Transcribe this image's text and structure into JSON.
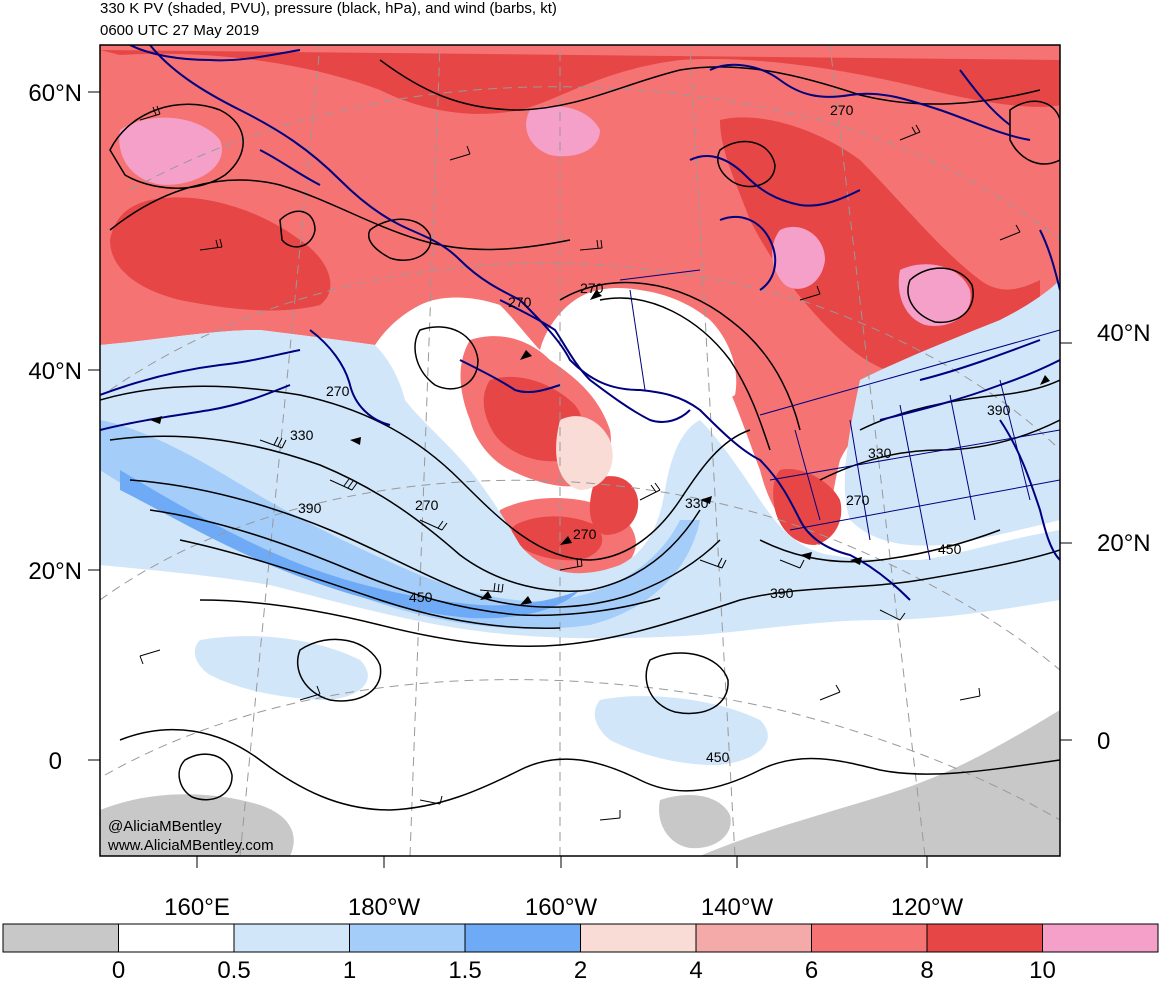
{
  "title": {
    "line1": "330 K PV (shaded, PVU), pressure (black, hPa), and wind (barbs, kt)",
    "line2": "0600 UTC 27 May 2019"
  },
  "credit": {
    "handle": "@AliciaMBentley",
    "website": "www.AliciaMBentley.com"
  },
  "latitude_labels_left": [
    "60°N",
    "40°N",
    "20°N",
    "0"
  ],
  "latitude_labels_right": [
    "40°N",
    "20°N",
    "0"
  ],
  "longitude_labels": [
    "160°E",
    "180°W",
    "160°W",
    "140°W",
    "120°W"
  ],
  "contour_labels": [
    "270",
    "270",
    "270",
    "270",
    "270",
    "270",
    "330",
    "330",
    "330",
    "390",
    "390",
    "450",
    "450",
    "450",
    "390"
  ],
  "colorbar": {
    "ticks": [
      "0",
      "0.5",
      "1",
      "1.5",
      "2",
      "4",
      "6",
      "8",
      "10"
    ],
    "colors": [
      "#c8c8c8",
      "#ffffff",
      "#d2e6fa",
      "#a5cdfa",
      "#6eaaf5",
      "#fadcd7",
      "#f5aaaa",
      "#f57373",
      "#e64646",
      "#f5a0c8"
    ]
  },
  "colors": {
    "coastline": "#000080",
    "contour": "#000000",
    "grid": "#999999"
  }
}
